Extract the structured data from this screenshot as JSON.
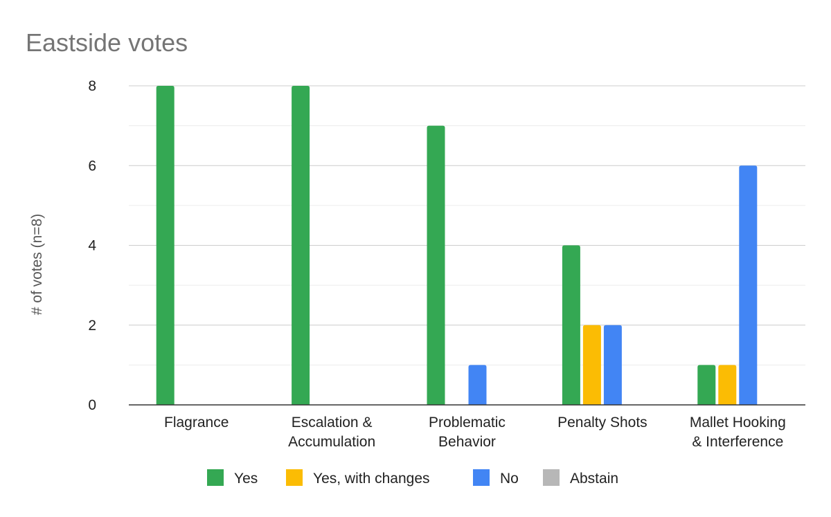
{
  "chart_data": {
    "type": "bar",
    "title": "Eastside votes",
    "xlabel": "",
    "ylabel": "# of votes (n=8)",
    "ylim": [
      0,
      8
    ],
    "yticks": [
      0,
      2,
      4,
      6,
      8
    ],
    "grid": true,
    "legend_position": "bottom",
    "categories": [
      [
        "Flagrance"
      ],
      [
        "Escalation &",
        "Accumulation"
      ],
      [
        "Problematic",
        "Behavior"
      ],
      [
        "Penalty Shots"
      ],
      [
        "Mallet Hooking",
        "& Interference"
      ]
    ],
    "series": [
      {
        "name": "Yes",
        "color": "#34a853",
        "values": [
          8,
          8,
          7,
          4,
          1
        ]
      },
      {
        "name": "Yes, with changes",
        "color": "#fbbc04",
        "values": [
          0,
          0,
          0,
          2,
          1
        ]
      },
      {
        "name": "No",
        "color": "#4285f4",
        "values": [
          0,
          0,
          1,
          2,
          6
        ]
      },
      {
        "name": "Abstain",
        "color": "#b7b7b7",
        "values": [
          0,
          0,
          0,
          0,
          0
        ]
      }
    ]
  }
}
